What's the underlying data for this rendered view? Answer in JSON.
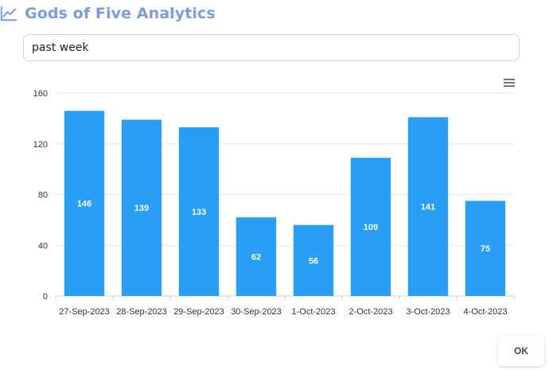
{
  "header": {
    "title": "Gods of Five Analytics",
    "icon": "line-chart-icon",
    "accent_color": "#7b9be3"
  },
  "range_input": {
    "value": "past week"
  },
  "chart_menu": {
    "icon": "hamburger-menu-icon"
  },
  "chart_data": {
    "type": "bar",
    "categories": [
      "27-Sep-2023",
      "28-Sep-2023",
      "29-Sep-2023",
      "30-Sep-2023",
      "1-Oct-2023",
      "2-Oct-2023",
      "3-Oct-2023",
      "4-Oct-2023"
    ],
    "values": [
      146,
      139,
      133,
      62,
      56,
      109,
      141,
      75
    ],
    "ylim": [
      0,
      160
    ],
    "yticks": [
      0,
      40,
      80,
      120,
      160
    ],
    "title": "",
    "xlabel": "",
    "ylabel": "",
    "grid": true,
    "bar_color": "#2a9df4",
    "data_labels": true
  },
  "footer": {
    "ok_label": "OK"
  }
}
